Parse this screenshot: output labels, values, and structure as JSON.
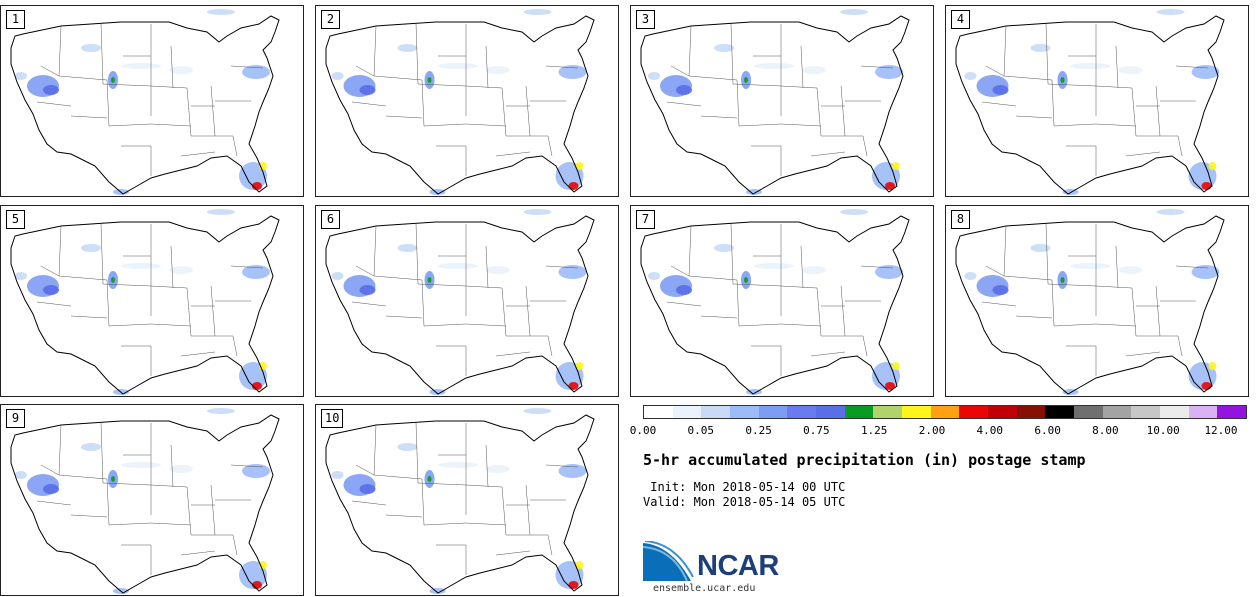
{
  "panels": [
    {
      "label": "1"
    },
    {
      "label": "2"
    },
    {
      "label": "3"
    },
    {
      "label": "4"
    },
    {
      "label": "5"
    },
    {
      "label": "6"
    },
    {
      "label": "7"
    },
    {
      "label": "8"
    },
    {
      "label": "9"
    },
    {
      "label": "10"
    }
  ],
  "colorbar": {
    "colors": [
      "#ffffff",
      "#eaf2fb",
      "#c8daf6",
      "#9cbbf8",
      "#7d9cf3",
      "#6a7bf0",
      "#5a6ee8",
      "#089c23",
      "#b1d36c",
      "#fff51d",
      "#ffa112",
      "#ea0506",
      "#c10003",
      "#861004",
      "#000000",
      "#6f6f6f",
      "#a3a3a3",
      "#c7c7c7",
      "#ebebeb",
      "#d9b2f4",
      "#9314e0"
    ],
    "tick_labels": [
      "0.00",
      "0.05",
      "0.25",
      "0.75",
      "1.25",
      "2.00",
      "4.00",
      "6.00",
      "8.00",
      "10.00",
      "12.00"
    ]
  },
  "title": "5-hr accumulated precipitation (in) postage stamp",
  "init": " Init: Mon 2018-05-14 00 UTC",
  "valid": "Valid: Mon 2018-05-14 05 UTC",
  "logo_text": "NCAR",
  "site": "ensemble.ucar.edu"
}
